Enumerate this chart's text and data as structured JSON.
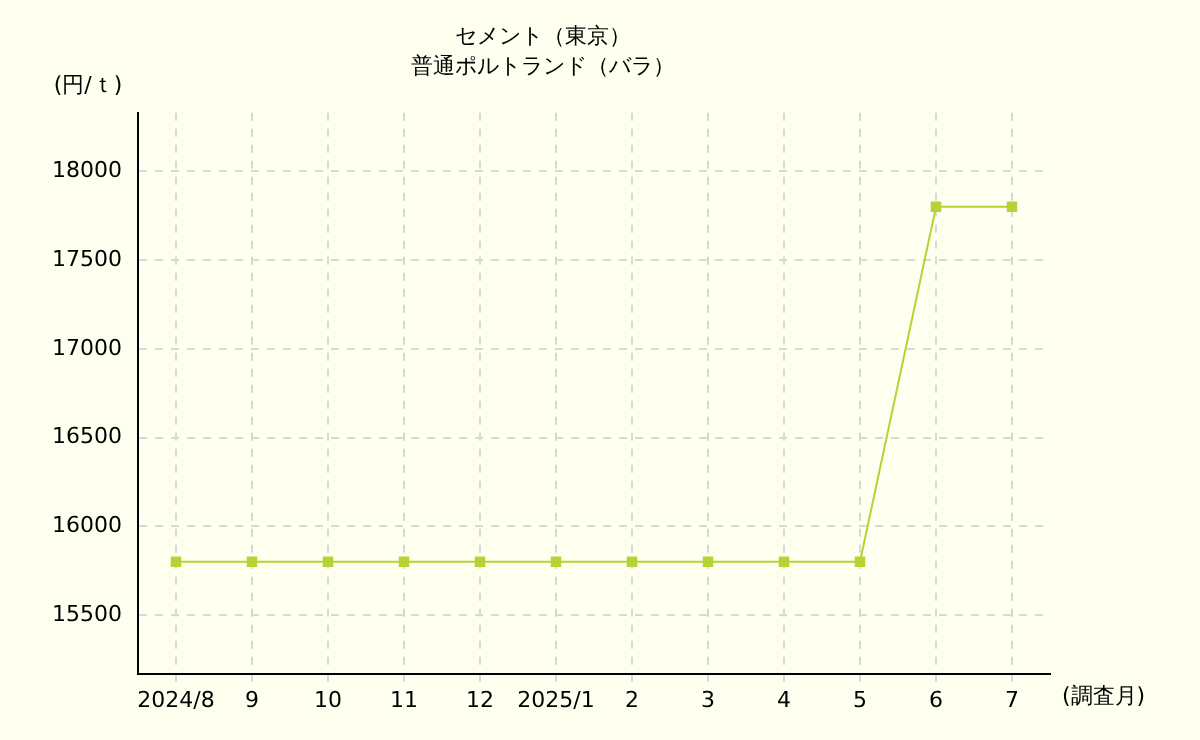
{
  "chart_data": {
    "type": "line",
    "title": "セメント（東京）",
    "subtitle": "普通ポルトランド（バラ）",
    "ylabel": "(円/ｔ)",
    "xlabel": "(調査月)",
    "categories": [
      "2024/8",
      "9",
      "10",
      "11",
      "12",
      "2025/1",
      "2",
      "3",
      "4",
      "5",
      "6",
      "7"
    ],
    "series": [
      {
        "color": "#b5d334",
        "values": [
          15800,
          15800,
          15800,
          15800,
          15800,
          15800,
          15800,
          15800,
          15800,
          15800,
          17800,
          17800
        ]
      }
    ],
    "ylim": [
      15170,
      18330
    ],
    "yticks": [
      15500,
      16000,
      16500,
      17000,
      17500,
      18000
    ],
    "grid": true,
    "legend": false,
    "marker": "square",
    "line_style": "solid"
  }
}
